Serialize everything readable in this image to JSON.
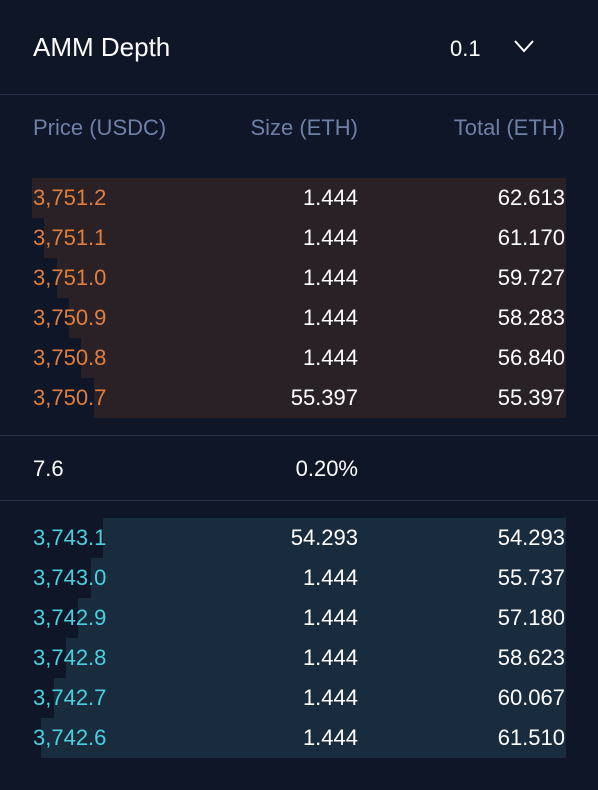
{
  "header": {
    "title": "AMM Depth",
    "tick_size": "0.1",
    "chevron_icon": "chevron-down-icon"
  },
  "columns": {
    "price": "Price (USDC)",
    "size": "Size (ETH)",
    "total": "Total (ETH)"
  },
  "asks": [
    {
      "price": "3,751.2",
      "size": "1.444",
      "total": "62.613"
    },
    {
      "price": "3,751.1",
      "size": "1.444",
      "total": "61.170"
    },
    {
      "price": "3,751.0",
      "size": "1.444",
      "total": "59.727"
    },
    {
      "price": "3,750.9",
      "size": "1.444",
      "total": "58.283"
    },
    {
      "price": "3,750.8",
      "size": "1.444",
      "total": "56.840"
    },
    {
      "price": "3,750.7",
      "size": "55.397",
      "total": "55.397"
    }
  ],
  "spread": {
    "value": "7.6",
    "percent": "0.20%"
  },
  "bids": [
    {
      "price": "3,743.1",
      "size": "54.293",
      "total": "54.293"
    },
    {
      "price": "3,743.0",
      "size": "1.444",
      "total": "55.737"
    },
    {
      "price": "3,742.9",
      "size": "1.444",
      "total": "57.180"
    },
    {
      "price": "3,742.8",
      "size": "1.444",
      "total": "58.623"
    },
    {
      "price": "3,742.7",
      "size": "1.444",
      "total": "60.067"
    },
    {
      "price": "3,742.6",
      "size": "1.444",
      "total": "61.510"
    }
  ],
  "colors": {
    "background": "#0e1628",
    "ask_price": "#e07e3e",
    "ask_bar": "#2a2126",
    "bid_price": "#4bd0e0",
    "bid_bar": "#182c3e",
    "header_text": "#6f7fa6"
  }
}
